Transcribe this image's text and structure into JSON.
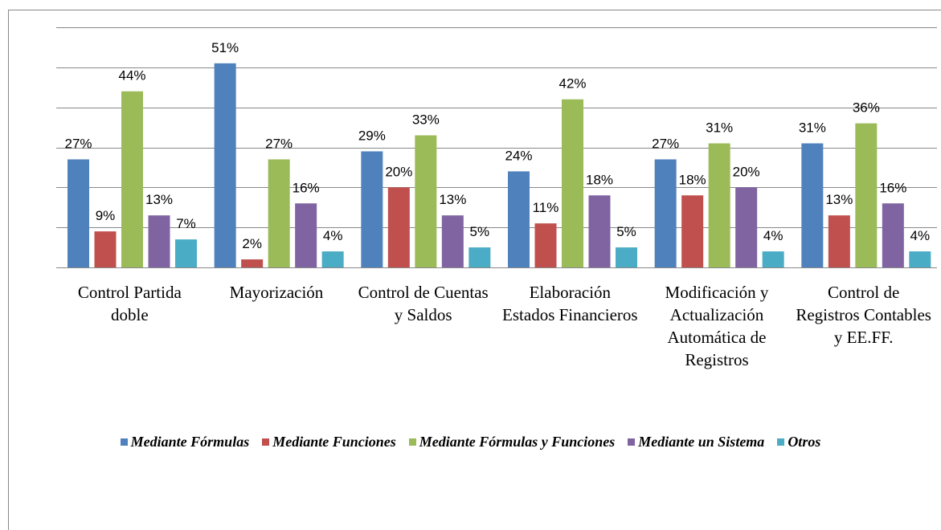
{
  "chart_data": {
    "type": "bar",
    "categories": [
      "Control Partida doble",
      "Mayorización",
      "Control de Cuentas y Saldos",
      "Elaboración Estados Financieros",
      "Modificación y Actualización Automática de Registros",
      "Control de Registros Contables y EE.FF."
    ],
    "series": [
      {
        "name": "Mediante Fórmulas",
        "color": "#4f81bd",
        "values": [
          27,
          51,
          29,
          24,
          27,
          31
        ],
        "value_labels": [
          "27%",
          "51%",
          "29%",
          "24%",
          "27%",
          "31%"
        ]
      },
      {
        "name": "Mediante Funciones",
        "color": "#c0504d",
        "values": [
          9,
          2,
          20,
          11,
          18,
          13
        ],
        "value_labels": [
          "9%",
          "2%",
          "20%",
          "11%",
          "18%",
          "13%"
        ]
      },
      {
        "name": "Mediante Fórmulas y Funciones",
        "color": "#9bbb59",
        "values": [
          44,
          27,
          33,
          42,
          31,
          36
        ],
        "value_labels": [
          "44%",
          "27%",
          "33%",
          "42%",
          "31%",
          "36%"
        ]
      },
      {
        "name": "Mediante un Sistema",
        "color": "#8064a2",
        "values": [
          13,
          16,
          13,
          18,
          20,
          16
        ],
        "value_labels": [
          "13%",
          "16%",
          "13%",
          "18%",
          "20%",
          "16%"
        ]
      },
      {
        "name": "Otros",
        "color": "#4bacc6",
        "values": [
          7,
          4,
          5,
          5,
          4,
          4
        ],
        "value_labels": [
          "7%",
          "4%",
          "5%",
          "5%",
          "4%",
          "4%"
        ]
      }
    ],
    "ylim": [
      0,
      60
    ],
    "yticks": [
      0,
      10,
      20,
      30,
      40,
      50,
      60
    ],
    "grid": true,
    "legend": "bottom"
  }
}
